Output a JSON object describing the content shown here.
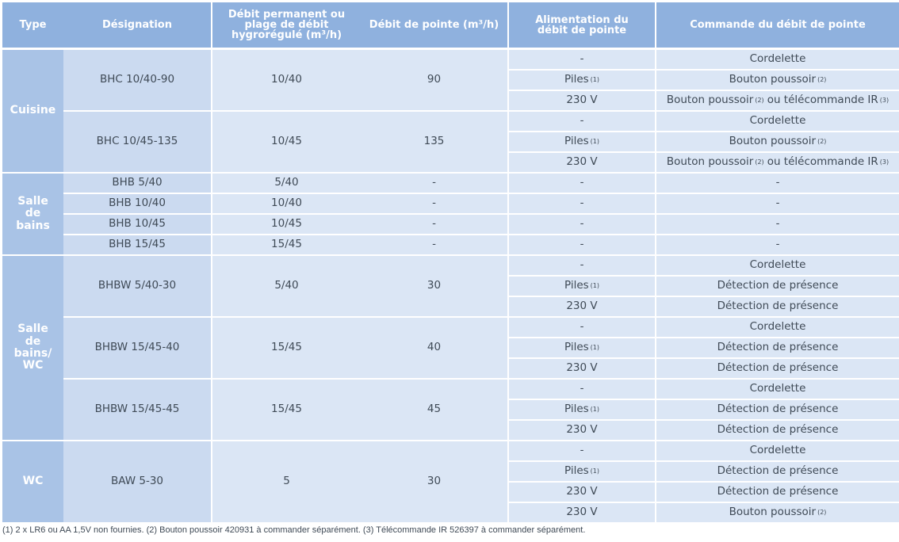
{
  "colors": {
    "header_bg": "#8fb1de",
    "type_bg": "#a9c3e6",
    "designation_bg": "#cbdaf0",
    "cell_bg": "#dbe6f5",
    "text": "#3f4a56",
    "header_text": "#ffffff"
  },
  "headers": {
    "type": "Type",
    "designation": "Désignation",
    "debit_permanent": "Débit permanent ou plage de débit hygrorégulé (m³/h)",
    "debit_pointe": "Débit de pointe (m³/h)",
    "alimentation": "Alimentation du débit de pointe",
    "commande": "Commande  du débit de pointe"
  },
  "groups": [
    {
      "type": "Cuisine",
      "models": [
        {
          "designation": "BHC 10/40-90",
          "debit": "10/40",
          "pointe": "90",
          "options": [
            {
              "alim": "-",
              "alim_note": "",
              "cmd": "Cordelette",
              "cmd_note": "",
              "cmd_suffix": "",
              "cmd_suffix_note": ""
            },
            {
              "alim": "Piles",
              "alim_note": "(1)",
              "cmd": "Bouton poussoir",
              "cmd_note": "(2)",
              "cmd_suffix": "",
              "cmd_suffix_note": ""
            },
            {
              "alim": "230 V",
              "alim_note": "",
              "cmd": "Bouton poussoir",
              "cmd_note": "(2)",
              "cmd_suffix": "ou télécommande IR",
              "cmd_suffix_note": "(3)"
            }
          ]
        },
        {
          "designation": "BHC 10/45-135",
          "debit": "10/45",
          "pointe": "135",
          "options": [
            {
              "alim": "-",
              "alim_note": "",
              "cmd": "Cordelette",
              "cmd_note": "",
              "cmd_suffix": "",
              "cmd_suffix_note": ""
            },
            {
              "alim": "Piles",
              "alim_note": "(1)",
              "cmd": "Bouton poussoir",
              "cmd_note": "(2)",
              "cmd_suffix": "",
              "cmd_suffix_note": ""
            },
            {
              "alim": "230 V",
              "alim_note": "",
              "cmd": "Bouton poussoir",
              "cmd_note": "(2)",
              "cmd_suffix": "ou télécommande IR",
              "cmd_suffix_note": "(3)"
            }
          ]
        }
      ]
    },
    {
      "type": "Salle de bains",
      "models": [
        {
          "designation": "BHB 5/40",
          "debit": "5/40",
          "pointe": "-",
          "options": [
            {
              "alim": "-",
              "alim_note": "",
              "cmd": "-",
              "cmd_note": "",
              "cmd_suffix": "",
              "cmd_suffix_note": ""
            }
          ]
        },
        {
          "designation": "BHB 10/40",
          "debit": "10/40",
          "pointe": "-",
          "options": [
            {
              "alim": "-",
              "alim_note": "",
              "cmd": "-",
              "cmd_note": "",
              "cmd_suffix": "",
              "cmd_suffix_note": ""
            }
          ]
        },
        {
          "designation": "BHB 10/45",
          "debit": "10/45",
          "pointe": "-",
          "options": [
            {
              "alim": "-",
              "alim_note": "",
              "cmd": "-",
              "cmd_note": "",
              "cmd_suffix": "",
              "cmd_suffix_note": ""
            }
          ]
        },
        {
          "designation": "BHB 15/45",
          "debit": "15/45",
          "pointe": "-",
          "options": [
            {
              "alim": "-",
              "alim_note": "",
              "cmd": "-",
              "cmd_note": "",
              "cmd_suffix": "",
              "cmd_suffix_note": ""
            }
          ]
        }
      ]
    },
    {
      "type": "Salle de bains/ WC",
      "models": [
        {
          "designation": "BHBW 5/40-30",
          "debit": "5/40",
          "pointe": "30",
          "options": [
            {
              "alim": "-",
              "alim_note": "",
              "cmd": "Cordelette",
              "cmd_note": "",
              "cmd_suffix": "",
              "cmd_suffix_note": ""
            },
            {
              "alim": "Piles",
              "alim_note": "(1)",
              "cmd": "Détection de présence",
              "cmd_note": "",
              "cmd_suffix": "",
              "cmd_suffix_note": ""
            },
            {
              "alim": "230 V",
              "alim_note": "",
              "cmd": "Détection de présence",
              "cmd_note": "",
              "cmd_suffix": "",
              "cmd_suffix_note": ""
            }
          ]
        },
        {
          "designation": "BHBW 15/45-40",
          "debit": "15/45",
          "pointe": "40",
          "options": [
            {
              "alim": "-",
              "alim_note": "",
              "cmd": "Cordelette",
              "cmd_note": "",
              "cmd_suffix": "",
              "cmd_suffix_note": ""
            },
            {
              "alim": "Piles",
              "alim_note": "(1)",
              "cmd": "Détection de présence",
              "cmd_note": "",
              "cmd_suffix": "",
              "cmd_suffix_note": ""
            },
            {
              "alim": "230 V",
              "alim_note": "",
              "cmd": "Détection de présence",
              "cmd_note": "",
              "cmd_suffix": "",
              "cmd_suffix_note": ""
            }
          ]
        },
        {
          "designation": "BHBW 15/45-45",
          "debit": "15/45",
          "pointe": "45",
          "options": [
            {
              "alim": "-",
              "alim_note": "",
              "cmd": "Cordelette",
              "cmd_note": "",
              "cmd_suffix": "",
              "cmd_suffix_note": ""
            },
            {
              "alim": "Piles",
              "alim_note": "(1)",
              "cmd": "Détection de présence",
              "cmd_note": "",
              "cmd_suffix": "",
              "cmd_suffix_note": ""
            },
            {
              "alim": "230 V",
              "alim_note": "",
              "cmd": "Détection de présence",
              "cmd_note": "",
              "cmd_suffix": "",
              "cmd_suffix_note": ""
            }
          ]
        }
      ]
    },
    {
      "type": "WC",
      "models": [
        {
          "designation": "BAW 5-30",
          "debit": "5",
          "pointe": "30",
          "options": [
            {
              "alim": "-",
              "alim_note": "",
              "cmd": "Cordelette",
              "cmd_note": "",
              "cmd_suffix": "",
              "cmd_suffix_note": ""
            },
            {
              "alim": "Piles",
              "alim_note": "(1)",
              "cmd": "Détection de présence",
              "cmd_note": "",
              "cmd_suffix": "",
              "cmd_suffix_note": ""
            },
            {
              "alim": "230 V",
              "alim_note": "",
              "cmd": "Détection de présence",
              "cmd_note": "",
              "cmd_suffix": "",
              "cmd_suffix_note": ""
            },
            {
              "alim": "230 V",
              "alim_note": "",
              "cmd": "Bouton poussoir",
              "cmd_note": "(2)",
              "cmd_suffix": "",
              "cmd_suffix_note": ""
            }
          ]
        }
      ]
    }
  ],
  "footnote": "(1) 2 x LR6 ou AA 1,5V non fournies. (2) Bouton poussoir 420931 à commander séparément. (3) Télécommande IR 526397 à commander séparément."
}
